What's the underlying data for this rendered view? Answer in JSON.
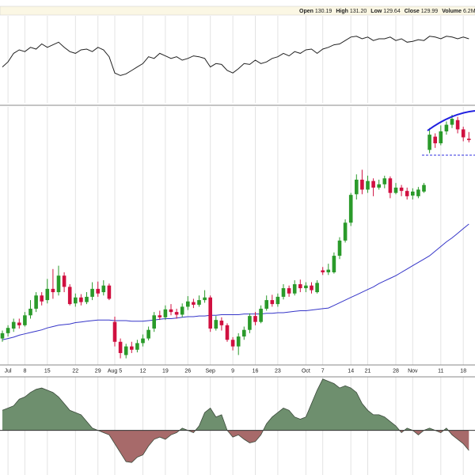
{
  "header": {
    "items": [
      {
        "label": "Open",
        "value": "130.19"
      },
      {
        "label": "High",
        "value": "131.20"
      },
      {
        "label": "Low",
        "value": "129.64"
      },
      {
        "label": "Close",
        "value": "129.99"
      },
      {
        "label": "Volume",
        "value": "6.2M"
      }
    ]
  },
  "chart_data": [
    {
      "type": "line",
      "color": "#222222",
      "ylim": [
        0,
        100
      ],
      "values": [
        42,
        48,
        58,
        62,
        60,
        65,
        63,
        69,
        65,
        68,
        71,
        65,
        60,
        58,
        62,
        63,
        60,
        65,
        62,
        54,
        35,
        32,
        34,
        38,
        42,
        46,
        54,
        52,
        58,
        55,
        52,
        54,
        50,
        52,
        55,
        54,
        52,
        42,
        46,
        45,
        38,
        35,
        40,
        46,
        45,
        50,
        46,
        48,
        52,
        54,
        58,
        55,
        60,
        58,
        62,
        63,
        58,
        63,
        65,
        68,
        69,
        73,
        77,
        78,
        75,
        77,
        73,
        75,
        75,
        77,
        73,
        75,
        71,
        72,
        74,
        73,
        78,
        77,
        75,
        78,
        77,
        75,
        77,
        75
      ]
    },
    {
      "type": "candlestick",
      "up_color": "#2a9a2a",
      "down_color": "#d01040",
      "grid": true,
      "ylim": [
        96,
        135
      ],
      "categories": [
        null,
        "Jul",
        null,
        null,
        "8",
        null,
        null,
        null,
        "15",
        null,
        null,
        null,
        null,
        "22",
        null,
        null,
        null,
        "29",
        null,
        null,
        "Aug 5",
        null,
        null,
        null,
        null,
        "12",
        null,
        null,
        null,
        "19",
        null,
        null,
        null,
        "26",
        null,
        null,
        null,
        "Sep",
        null,
        null,
        null,
        "9",
        null,
        null,
        null,
        "16",
        null,
        null,
        null,
        "23",
        null,
        null,
        null,
        null,
        "Oct",
        null,
        null,
        "7",
        null,
        null,
        null,
        null,
        "14",
        null,
        null,
        "21",
        null,
        null,
        null,
        null,
        "28",
        null,
        null,
        "Nov",
        null,
        null,
        null,
        null,
        "11",
        null,
        null,
        null,
        "18",
        null
      ],
      "open": [
        100,
        100.8,
        101.5,
        102.4,
        102,
        103.5,
        104.5,
        106.5,
        105.8,
        107.5,
        107,
        109.5,
        107.8,
        105.3,
        106.2,
        105.5,
        106.3,
        107.5,
        107,
        108,
        102.5,
        99.5,
        97.5,
        98.8,
        98.3,
        99.3,
        100,
        101.5,
        103.5,
        103.2,
        104.4,
        104,
        103.6,
        104.8,
        105.5,
        105.1,
        105.8,
        106.2,
        101.5,
        102.7,
        102,
        99.8,
        98.8,
        100.3,
        101.3,
        103.4,
        102.5,
        104.5,
        105.8,
        105.2,
        106.3,
        107.6,
        106.8,
        108.2,
        107.6,
        108,
        107,
        110.3,
        110,
        110,
        112.5,
        114.8,
        117.5,
        121.8,
        124,
        122.5,
        123.8,
        122.8,
        123.3,
        124.2,
        122,
        122.8,
        122.3,
        121.6,
        121.5,
        122.2,
        128.5,
        130.5,
        129.5,
        131.3,
        132.3,
        133,
        131.6,
        130.19
      ],
      "high": [
        101.2,
        102,
        103,
        103,
        104,
        105.8,
        107,
        107,
        109,
        110.5,
        111,
        110,
        108.2,
        106.8,
        106.7,
        107,
        108.5,
        108.6,
        108.8,
        108.3,
        103.3,
        100,
        99.2,
        99.5,
        99.8,
        100.6,
        101.8,
        104,
        104.2,
        105,
        105.2,
        104.5,
        105.3,
        106.4,
        106,
        106.5,
        107.3,
        106.5,
        103.4,
        103.2,
        102.3,
        100.2,
        100.8,
        101.8,
        103.8,
        104,
        105,
        106.5,
        106.6,
        106.8,
        108.2,
        108,
        108.8,
        108.9,
        108.5,
        108.5,
        108.8,
        110.8,
        111.3,
        113,
        115.3,
        118,
        122,
        124.8,
        125.5,
        124.6,
        124.2,
        124,
        124.6,
        124.5,
        123.5,
        123.2,
        122.8,
        122.7,
        122.9,
        123.5,
        131.8,
        131,
        132.2,
        132.8,
        133.8,
        133.5,
        132,
        131.2
      ],
      "low": [
        99.5,
        100.3,
        101,
        101.5,
        101.8,
        103,
        104,
        105,
        105.3,
        106,
        106.5,
        107,
        105,
        104.8,
        105,
        105.2,
        105.8,
        106.3,
        106.5,
        105.8,
        98.8,
        97,
        97,
        97.8,
        97.9,
        98.8,
        99.7,
        101,
        102.8,
        102.8,
        103.5,
        103,
        103.2,
        104.3,
        104.6,
        104.8,
        105.4,
        101,
        101.2,
        101.2,
        99.5,
        98.2,
        97.5,
        99.8,
        100.8,
        102,
        102.3,
        104.2,
        104.8,
        104.8,
        105.9,
        106.3,
        106.5,
        107,
        107,
        106.8,
        106.8,
        109.6,
        109.6,
        109.8,
        112,
        114.5,
        117,
        121,
        121.8,
        122,
        121.5,
        122.5,
        122.7,
        121.2,
        121.8,
        121.5,
        121,
        121,
        121.2,
        122,
        128,
        128.8,
        129.2,
        130.8,
        131.8,
        131,
        129.8,
        129.64
      ],
      "close": [
        100.8,
        101.6,
        102.5,
        102,
        103.5,
        104.5,
        106.5,
        105.6,
        107.5,
        107,
        109.5,
        107.8,
        105.2,
        106.2,
        105.5,
        106.3,
        107.5,
        106.8,
        108,
        106,
        99.5,
        97.8,
        98.8,
        98.3,
        99.3,
        100,
        101.3,
        103.5,
        103.2,
        104.4,
        104,
        103.6,
        104.8,
        105.6,
        105.1,
        105.8,
        106.2,
        101.5,
        102.8,
        102,
        99.8,
        98.8,
        100.3,
        101.3,
        103.4,
        102.5,
        104.5,
        105.8,
        105.2,
        106.3,
        107.6,
        106.8,
        108.2,
        107.6,
        108,
        107.3,
        108.4,
        110,
        110.4,
        112.5,
        114.8,
        117.5,
        121.7,
        124,
        122.5,
        123.8,
        122.8,
        123.3,
        124.2,
        122,
        122.8,
        122.3,
        121.5,
        122.2,
        122.5,
        123.2,
        130.8,
        129.5,
        131.3,
        132.3,
        133.2,
        131.6,
        130.4,
        129.99
      ],
      "ma": {
        "color": "#3535c8",
        "values": [
          99.8,
          100.0,
          100.2,
          100.5,
          100.7,
          100.9,
          101.1,
          101.3,
          101.6,
          101.8,
          102.0,
          102.1,
          102.2,
          102.4,
          102.5,
          102.6,
          102.7,
          102.8,
          102.8,
          102.8,
          102.7,
          102.7,
          102.7,
          102.6,
          102.6,
          102.6,
          102.7,
          102.8,
          102.9,
          103.0,
          103.0,
          103.1,
          103.2,
          103.3,
          103.3,
          103.4,
          103.4,
          103.5,
          103.5,
          103.6,
          103.6,
          103.6,
          103.6,
          103.7,
          103.7,
          103.7,
          103.7,
          103.8,
          103.8,
          103.9,
          103.9,
          104.0,
          104.1,
          104.2,
          104.2,
          104.3,
          104.4,
          104.5,
          104.6,
          105.0,
          105.4,
          105.8,
          106.2,
          106.6,
          107.0,
          107.4,
          107.8,
          108.3,
          108.7,
          109.1,
          109.5,
          110.0,
          110.5,
          111.0,
          111.5,
          112.0,
          112.5,
          113.2,
          113.9,
          114.6,
          115.2,
          115.9,
          116.6,
          117.3
        ]
      }
    },
    {
      "type": "area",
      "up_color": "#6e8f6e",
      "down_color": "#a76a6a",
      "line_color": "#3b4a3b",
      "ylim": [
        -1,
        1.2
      ],
      "values": [
        0.45,
        0.5,
        0.55,
        0.7,
        0.75,
        0.85,
        0.92,
        0.95,
        0.9,
        0.85,
        0.75,
        0.6,
        0.45,
        0.4,
        0.35,
        0.2,
        0.05,
        0,
        -0.05,
        -0.1,
        -0.3,
        -0.5,
        -0.7,
        -0.72,
        -0.6,
        -0.55,
        -0.35,
        -0.2,
        -0.15,
        -0.2,
        -0.1,
        -0.05,
        0.05,
        0,
        -0.05,
        0.1,
        0.4,
        0.5,
        0.3,
        0.35,
        0,
        -0.15,
        -0.1,
        -0.2,
        -0.28,
        -0.25,
        -0.1,
        0.15,
        0.3,
        0.4,
        0.5,
        0.45,
        0.3,
        0.25,
        0.3,
        0.6,
        0.9,
        1.15,
        1.1,
        1.05,
        0.95,
        1,
        0.95,
        0.85,
        0.6,
        0.45,
        0.35,
        0.35,
        0.3,
        0.2,
        0.1,
        -0.05,
        0.05,
        0,
        -0.1,
        0,
        0.05,
        0,
        -0.05,
        0.05,
        -0.1,
        -0.2,
        -0.3,
        -0.45
      ]
    }
  ]
}
